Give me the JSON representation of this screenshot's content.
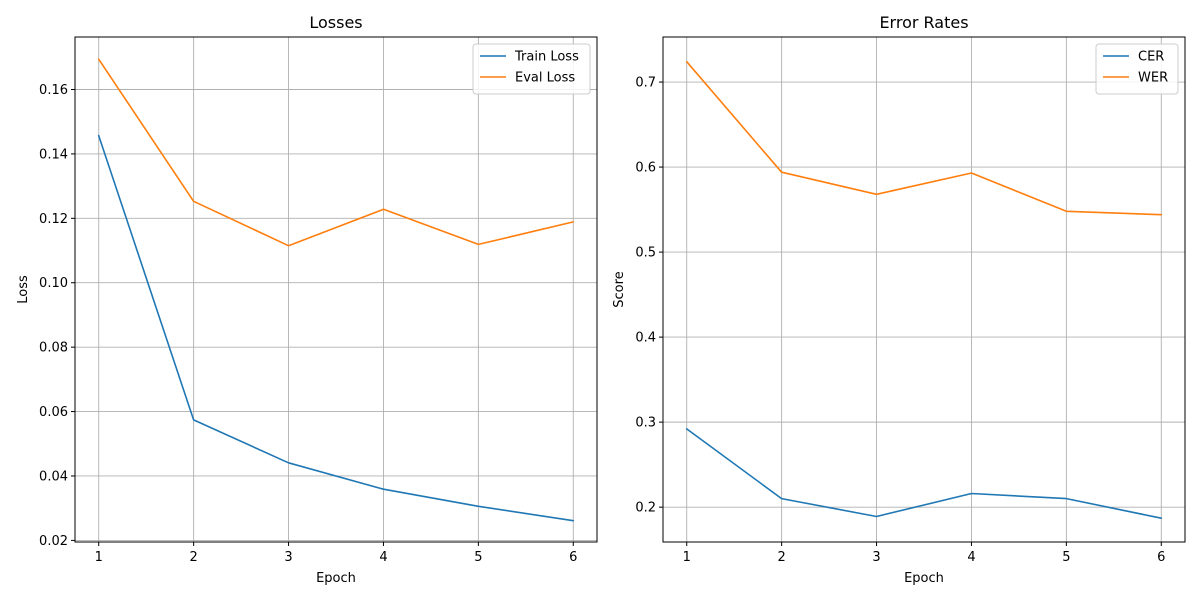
{
  "chart_data": [
    {
      "type": "line",
      "title": "Losses",
      "xlabel": "Epoch",
      "ylabel": "Loss",
      "x": [
        1,
        2,
        3,
        4,
        5,
        6
      ],
      "xlim": [
        0.75,
        6.25
      ],
      "ylim": [
        0.0195,
        0.1763
      ],
      "xticks": [
        "1",
        "2",
        "3",
        "4",
        "5",
        "6"
      ],
      "yticks": [
        "0.02",
        "0.04",
        "0.06",
        "0.08",
        "0.10",
        "0.12",
        "0.14",
        "0.16"
      ],
      "grid": true,
      "legend_position": "top-right",
      "series": [
        {
          "name": "Train Loss",
          "color": "#1f77b4",
          "values": [
            0.1457,
            0.0574,
            0.0441,
            0.0359,
            0.0306,
            0.0261
          ]
        },
        {
          "name": "Eval Loss",
          "color": "#ff7f0e",
          "values": [
            0.1694,
            0.1253,
            0.1115,
            0.1228,
            0.1119,
            0.1189
          ]
        }
      ]
    },
    {
      "type": "line",
      "title": "Error Rates",
      "xlabel": "Epoch",
      "ylabel": "Score",
      "x": [
        1,
        2,
        3,
        4,
        5,
        6
      ],
      "xlim": [
        0.75,
        6.25
      ],
      "ylim": [
        0.159,
        0.753
      ],
      "xticks": [
        "1",
        "2",
        "3",
        "4",
        "5",
        "6"
      ],
      "yticks": [
        "0.2",
        "0.3",
        "0.4",
        "0.5",
        "0.6",
        "0.7"
      ],
      "grid": true,
      "legend_position": "top-right",
      "series": [
        {
          "name": "CER",
          "color": "#1f77b4",
          "values": [
            0.292,
            0.21,
            0.189,
            0.216,
            0.21,
            0.187
          ]
        },
        {
          "name": "WER",
          "color": "#ff7f0e",
          "values": [
            0.724,
            0.594,
            0.568,
            0.593,
            0.548,
            0.544
          ]
        }
      ]
    }
  ]
}
